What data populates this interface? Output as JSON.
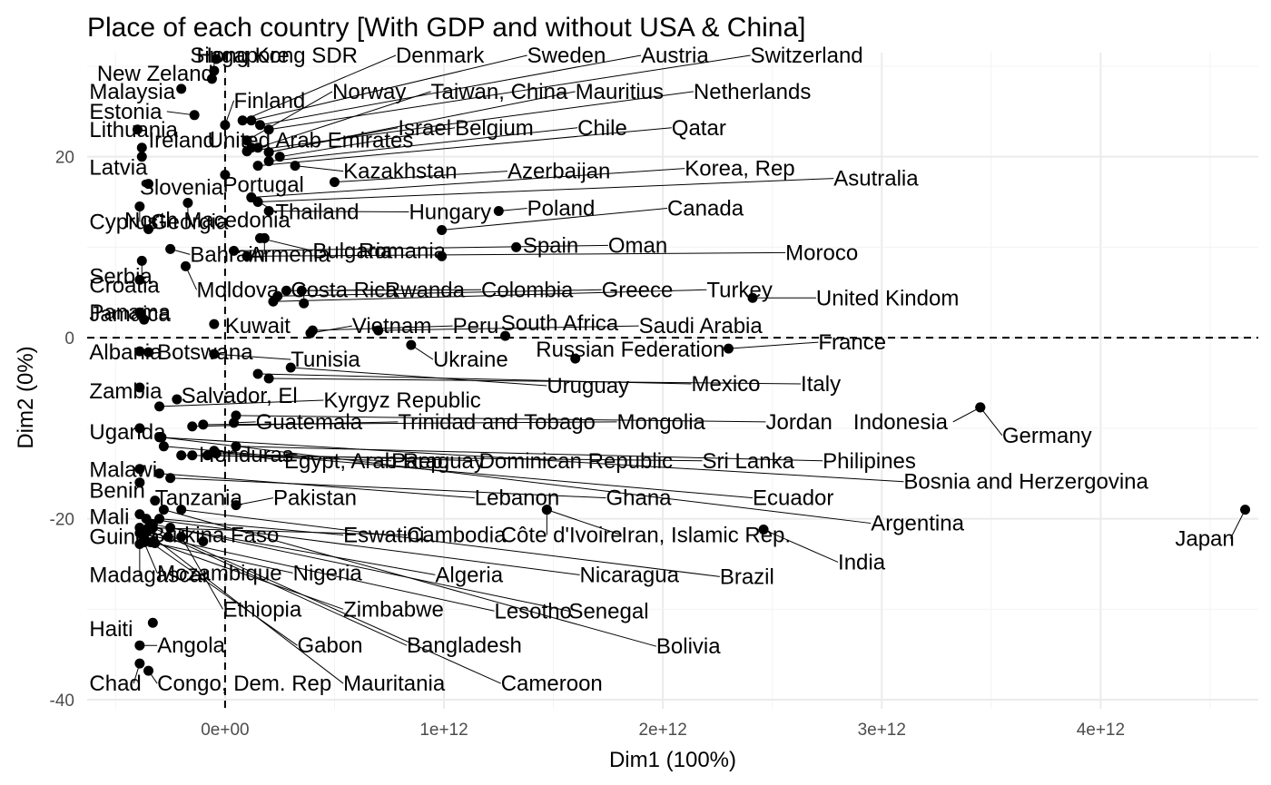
{
  "chart_data": {
    "type": "scatter",
    "title": "Place of each country [With GDP and without USA & China]",
    "xlabel": "Dim1 (100%)",
    "ylabel": "Dim2 (0%)",
    "xlim": [
      -630000000000.0,
      4720000000000.0
    ],
    "ylim": [
      -41,
      31.5
    ],
    "xticks": [
      0,
      1000000000000.0,
      2000000000000.0,
      3000000000000.0,
      4000000000000.0
    ],
    "xtick_labels": [
      "0e+00",
      "1e+12",
      "2e+12",
      "3e+12",
      "4e+12"
    ],
    "yticks": [
      20,
      0,
      -20,
      -40
    ],
    "ytick_labels": [
      "20",
      "0",
      "-20",
      "-40"
    ],
    "reference_lines": {
      "x": 0,
      "y": 0,
      "style": "dashed"
    },
    "grid": true,
    "points": [
      {
        "name": "Singapore",
        "x": -40000000000.0,
        "y": 30.8,
        "lx": -160000000000.0,
        "ly": 31.2
      },
      {
        "name": "Hong Kong SDR",
        "x": -50000000000.0,
        "y": 29.5,
        "lx": -130000000000.0,
        "ly": 31.2
      },
      {
        "name": "New Zeland",
        "x": -60000000000.0,
        "y": 28.6,
        "lx": -585000000000.0,
        "ly": 29.2
      },
      {
        "name": "Malaysia",
        "x": -200000000000.0,
        "y": 27.5,
        "lx": -620000000000.0,
        "ly": 27.2
      },
      {
        "name": "Estonia",
        "x": -140000000000.0,
        "y": 24.6,
        "lx": -620000000000.0,
        "ly": 25.0
      },
      {
        "name": "Denmark",
        "x": 80000000000.0,
        "y": 24.0,
        "lx": 780000000000.0,
        "ly": 31.2
      },
      {
        "name": "Sweden",
        "x": 120000000000.0,
        "y": 24.0,
        "lx": 1380000000000.0,
        "ly": 31.2
      },
      {
        "name": "Austria",
        "x": 160000000000.0,
        "y": 23.5,
        "lx": 1900000000000.0,
        "ly": 31.2
      },
      {
        "name": "Switzerland",
        "x": 200000000000.0,
        "y": 23.0,
        "lx": 2400000000000.0,
        "ly": 31.2
      },
      {
        "name": "Finland",
        "x": 0,
        "y": 23.5,
        "lx": 40000000000.0,
        "ly": 26.2
      },
      {
        "name": "Norway",
        "x": 100000000000.0,
        "y": 21.8,
        "lx": 490000000000.0,
        "ly": 27.2
      },
      {
        "name": "Taiwan, China",
        "x": 150000000000.0,
        "y": 21.0,
        "lx": 940000000000.0,
        "ly": 27.2
      },
      {
        "name": "Mauritius",
        "x": 200000000000.0,
        "y": 20.5,
        "lx": 1600000000000.0,
        "ly": 27.2
      },
      {
        "name": "Netherlands",
        "x": 100000000000.0,
        "y": 20.6,
        "lx": 2140000000000.0,
        "ly": 27.2
      },
      {
        "name": "Lithuania",
        "x": -400000000000.0,
        "y": 23.0,
        "lx": -620000000000.0,
        "ly": 23.0
      },
      {
        "name": "Ireland",
        "x": -380000000000.0,
        "y": 21.0,
        "lx": -350000000000.0,
        "ly": 21.8
      },
      {
        "name": "United Arab Emirates",
        "x": 120000000000.0,
        "y": 21.0,
        "lx": -80000000000.0,
        "ly": 21.8
      },
      {
        "name": "Israel",
        "x": 200000000000.0,
        "y": 20.5,
        "lx": 790000000000.0,
        "ly": 23.2
      },
      {
        "name": "Belgium",
        "x": 250000000000.0,
        "y": 20.0,
        "lx": 1050000000000.0,
        "ly": 23.2
      },
      {
        "name": "Chile",
        "x": 200000000000.0,
        "y": 19.5,
        "lx": 1610000000000.0,
        "ly": 23.2
      },
      {
        "name": "Qatar",
        "x": 150000000000.0,
        "y": 19.0,
        "lx": 2040000000000.0,
        "ly": 23.2
      },
      {
        "name": "Latvia",
        "x": -380000000000.0,
        "y": 20.0,
        "lx": -620000000000.0,
        "ly": 18.8
      },
      {
        "name": "Slovenia",
        "x": -350000000000.0,
        "y": 17.0,
        "lx": -390000000000.0,
        "ly": 16.6
      },
      {
        "name": "Portugal",
        "x": 0,
        "y": 18.0,
        "lx": -10000000000.0,
        "ly": 16.9
      },
      {
        "name": "Kazakhstan",
        "x": 320000000000.0,
        "y": 19.0,
        "lx": 540000000000.0,
        "ly": 18.4
      },
      {
        "name": "Azerbaijan",
        "x": 500000000000.0,
        "y": 17.2,
        "lx": 1290000000000.0,
        "ly": 18.4
      },
      {
        "name": "Korea, Rep",
        "x": 120000000000.0,
        "y": 15.5,
        "lx": 2100000000000.0,
        "ly": 18.7
      },
      {
        "name": "Asutralia",
        "x": 150000000000.0,
        "y": 15.0,
        "lx": 2780000000000.0,
        "ly": 17.6
      },
      {
        "name": "Cyprus",
        "x": -390000000000.0,
        "y": 14.5,
        "lx": -620000000000.0,
        "ly": 12.8
      },
      {
        "name": "North Macedonia",
        "x": -170000000000.0,
        "y": 14.9,
        "lx": -460000000000.0,
        "ly": 13.0
      },
      {
        "name": "Georgia",
        "x": -350000000000.0,
        "y": 12.0,
        "lx": -340000000000.0,
        "ly": 12.8
      },
      {
        "name": "Thailand",
        "x": 120000000000.0,
        "y": 15.5,
        "lx": 230000000000.0,
        "ly": 13.9
      },
      {
        "name": "Hungary",
        "x": 200000000000.0,
        "y": 14.0,
        "lx": 840000000000.0,
        "ly": 13.9
      },
      {
        "name": "Poland",
        "x": 1250000000000.0,
        "y": 14.0,
        "lx": 1380000000000.0,
        "ly": 14.3
      },
      {
        "name": "Canada",
        "x": 990000000000.0,
        "y": 11.9,
        "lx": 2020000000000.0,
        "ly": 14.3
      },
      {
        "name": "Bahrain",
        "x": -250000000000.0,
        "y": 9.8,
        "lx": -160000000000.0,
        "ly": 9.2
      },
      {
        "name": "Armenia",
        "x": 180000000000.0,
        "y": 11.0,
        "lx": 110000000000.0,
        "ly": 9.2
      },
      {
        "name": "Bulgaria",
        "x": 160000000000.0,
        "y": 11.0,
        "lx": 400000000000.0,
        "ly": 9.6
      },
      {
        "name": "Romania",
        "x": 990000000000.0,
        "y": 9.0,
        "lx": 610000000000.0,
        "ly": 9.6
      },
      {
        "name": "Spain",
        "x": 1330000000000.0,
        "y": 10.0,
        "lx": 1360000000000.0,
        "ly": 10.2
      },
      {
        "name": "Oman",
        "x": 40000000000.0,
        "y": 9.6,
        "lx": 1750000000000.0,
        "ly": 10.2
      },
      {
        "name": "Moroco",
        "x": 100000000000.0,
        "y": 9.0,
        "lx": 2560000000000.0,
        "ly": 9.4
      },
      {
        "name": "Serbia",
        "x": -380000000000.0,
        "y": 8.5,
        "lx": -620000000000.0,
        "ly": 6.8
      },
      {
        "name": "Croatia",
        "x": -390000000000.0,
        "y": 6.4,
        "lx": -620000000000.0,
        "ly": 5.8
      },
      {
        "name": "Moldova",
        "x": -180000000000.0,
        "y": 7.9,
        "lx": -130000000000.0,
        "ly": 5.3
      },
      {
        "name": "Costa Rica",
        "x": 360000000000.0,
        "y": 3.8,
        "lx": 300000000000.0,
        "ly": 5.3
      },
      {
        "name": "Rwanda",
        "x": 350000000000.0,
        "y": 5.2,
        "lx": 730000000000.0,
        "ly": 5.3
      },
      {
        "name": "Colombia",
        "x": 280000000000.0,
        "y": 5.2,
        "lx": 1170000000000.0,
        "ly": 5.3
      },
      {
        "name": "Greece",
        "x": 240000000000.0,
        "y": 4.6,
        "lx": 1720000000000.0,
        "ly": 5.3
      },
      {
        "name": "Turkey",
        "x": 220000000000.0,
        "y": 4.0,
        "lx": 2200000000000.0,
        "ly": 5.3
      },
      {
        "name": "United Kindom",
        "x": 2410000000000.0,
        "y": 4.4,
        "lx": 2700000000000.0,
        "ly": 4.4
      },
      {
        "name": "Jamaica",
        "x": -390000000000.0,
        "y": 2.8,
        "lx": -620000000000.0,
        "ly": 2.6
      },
      {
        "name": "Panama",
        "x": -370000000000.0,
        "y": 2.0,
        "lx": -620000000000.0,
        "ly": 2.8
      },
      {
        "name": "Kuwait",
        "x": -50000000000.0,
        "y": 1.5,
        "lx": 0,
        "ly": 1.3
      },
      {
        "name": "Vietnam",
        "x": 390000000000.0,
        "y": 0.5,
        "lx": 580000000000.0,
        "ly": 1.3
      },
      {
        "name": "Peru",
        "x": 400000000000.0,
        "y": 0.8,
        "lx": 1040000000000.0,
        "ly": 1.3
      },
      {
        "name": "South Africa",
        "x": 1280000000000.0,
        "y": 0.2,
        "lx": 1260000000000.0,
        "ly": 1.6
      },
      {
        "name": "Saudi Arabia",
        "x": 700000000000.0,
        "y": 0.8,
        "lx": 1890000000000.0,
        "ly": 1.3
      },
      {
        "name": "France",
        "x": 2300000000000.0,
        "y": -1.2,
        "lx": 2710000000000.0,
        "ly": -0.5
      },
      {
        "name": "Albania",
        "x": -390000000000.0,
        "y": -1.5,
        "lx": -620000000000.0,
        "ly": -1.6
      },
      {
        "name": "Botswana",
        "x": -350000000000.0,
        "y": -1.6,
        "lx": -310000000000.0,
        "ly": -1.6
      },
      {
        "name": "Tunisia",
        "x": -50000000000.0,
        "y": -1.8,
        "lx": 300000000000.0,
        "ly": -2.4
      },
      {
        "name": "Ukraine",
        "x": 850000000000.0,
        "y": -0.8,
        "lx": 950000000000.0,
        "ly": -2.4
      },
      {
        "name": "Russian Federation",
        "x": 1600000000000.0,
        "y": -2.3,
        "lx": 1420000000000.0,
        "ly": -1.3
      },
      {
        "name": "Uruguay",
        "x": 300000000000.0,
        "y": -3.3,
        "lx": 1470000000000.0,
        "ly": -5.3
      },
      {
        "name": "Mexico",
        "x": 150000000000.0,
        "y": -4.0,
        "lx": 2130000000000.0,
        "ly": -5.1
      },
      {
        "name": "Italy",
        "x": 200000000000.0,
        "y": -4.5,
        "lx": 2630000000000.0,
        "ly": -5.1
      },
      {
        "name": "Zambia",
        "x": -390000000000.0,
        "y": -5.5,
        "lx": -620000000000.0,
        "ly": -5.9
      },
      {
        "name": "Salvador, El",
        "x": -220000000000.0,
        "y": -6.8,
        "lx": -200000000000.0,
        "ly": -6.4
      },
      {
        "name": "Kyrgyz Republic",
        "x": -300000000000.0,
        "y": -7.6,
        "lx": 450000000000.0,
        "ly": -6.9
      },
      {
        "name": "Jordan",
        "x": 50000000000.0,
        "y": -8.6,
        "lx": 2470000000000.0,
        "ly": -9.3
      },
      {
        "name": "Indonesia",
        "x": 3450000000000.0,
        "y": -7.7,
        "lx": 2870000000000.0,
        "ly": -9.3
      },
      {
        "name": "Germany",
        "x": 3450000000000.0,
        "y": -7.7,
        "lx": 3550000000000.0,
        "ly": -10.8
      },
      {
        "name": "Uganda",
        "x": -390000000000.0,
        "y": -10.0,
        "lx": -620000000000.0,
        "ly": -10.4
      },
      {
        "name": "Guatemala",
        "x": 40000000000.0,
        "y": -9.4,
        "lx": 140000000000.0,
        "ly": -9.3
      },
      {
        "name": "Trinidad and Tobago",
        "x": -150000000000.0,
        "y": -9.8,
        "lx": 790000000000.0,
        "ly": -9.3
      },
      {
        "name": "Mongolia",
        "x": -100000000000.0,
        "y": -9.6,
        "lx": 1790000000000.0,
        "ly": -9.3
      },
      {
        "name": "Honduras",
        "x": -150000000000.0,
        "y": -13.0,
        "lx": -120000000000.0,
        "ly": -12.9
      },
      {
        "name": "Egypt, Arab Rep.",
        "x": -50000000000.0,
        "y": -12.5,
        "lx": 270000000000.0,
        "ly": -13.6
      },
      {
        "name": "Paraguay",
        "x": -80000000000.0,
        "y": -13.0,
        "lx": 760000000000.0,
        "ly": -13.6
      },
      {
        "name": "Dominican Republic",
        "x": -40000000000.0,
        "y": -12.8,
        "lx": 1160000000000.0,
        "ly": -13.6
      },
      {
        "name": "Sri Lanka",
        "x": -200000000000.0,
        "y": -13.0,
        "lx": 2180000000000.0,
        "ly": -13.6
      },
      {
        "name": "Philipines",
        "x": 50000000000.0,
        "y": -12.0,
        "lx": 2730000000000.0,
        "ly": -13.6
      },
      {
        "name": "Bosnia and Herzergovina",
        "x": -300000000000.0,
        "y": -11.0,
        "lx": 3100000000000.0,
        "ly": -15.9
      },
      {
        "name": "Malawi",
        "x": -390000000000.0,
        "y": -14.5,
        "lx": -620000000000.0,
        "ly": -14.6
      },
      {
        "name": "Benin",
        "x": -390000000000.0,
        "y": -16.0,
        "lx": -620000000000.0,
        "ly": -16.9
      },
      {
        "name": "Tanzania",
        "x": -320000000000.0,
        "y": -18.0,
        "lx": -320000000000.0,
        "ly": -17.7
      },
      {
        "name": "Pakistan",
        "x": 50000000000.0,
        "y": -18.5,
        "lx": 220000000000.0,
        "ly": -17.7
      },
      {
        "name": "Lebanon",
        "x": -300000000000.0,
        "y": -15.0,
        "lx": 1140000000000.0,
        "ly": -17.7
      },
      {
        "name": "Ghana",
        "x": -250000000000.0,
        "y": -15.5,
        "lx": 1740000000000.0,
        "ly": -17.7
      },
      {
        "name": "Ecuador",
        "x": -280000000000.0,
        "y": -12.0,
        "lx": 2410000000000.0,
        "ly": -17.7
      },
      {
        "name": "Argentina",
        "x": -290000000000.0,
        "y": -11.0,
        "lx": 2950000000000.0,
        "ly": -20.5
      },
      {
        "name": "Mali",
        "x": -390000000000.0,
        "y": -19.5,
        "lx": -620000000000.0,
        "ly": -19.8
      },
      {
        "name": "Japan",
        "x": 4660000000000.0,
        "y": -19.0,
        "lx": 4340000000000.0,
        "ly": -22.2
      },
      {
        "name": "Guinea",
        "x": -390000000000.0,
        "y": -21.0,
        "lx": -620000000000.0,
        "ly": -22.0
      },
      {
        "name": "Burkina Faso",
        "x": -100000000000.0,
        "y": -22.5,
        "lx": -340000000000.0,
        "ly": -21.8
      },
      {
        "name": "Eswatini",
        "x": -300000000000.0,
        "y": -20.0,
        "lx": 540000000000.0,
        "ly": -21.8
      },
      {
        "name": "Cambodia",
        "x": -350000000000.0,
        "y": -21.0,
        "lx": 830000000000.0,
        "ly": -21.8
      },
      {
        "name": "Côte d'Ivoire",
        "x": 1470000000000.0,
        "y": -19.0,
        "lx": 1260000000000.0,
        "ly": -21.8
      },
      {
        "name": "Iran, Islamic Rep.",
        "x": 1470000000000.0,
        "y": -19.0,
        "lx": 1810000000000.0,
        "ly": -21.8
      },
      {
        "name": "India",
        "x": 2460000000000.0,
        "y": -21.2,
        "lx": 2800000000000.0,
        "ly": -24.8
      },
      {
        "name": "Madagascar",
        "x": -390000000000.0,
        "y": -22.8,
        "lx": -620000000000.0,
        "ly": -26.2
      },
      {
        "name": "Mozambique",
        "x": -370000000000.0,
        "y": -22.6,
        "lx": -310000000000.0,
        "ly": -26.0
      },
      {
        "name": "Nigeria",
        "x": -320000000000.0,
        "y": -22.7,
        "lx": 310000000000.0,
        "ly": -26.0
      },
      {
        "name": "Algeria",
        "x": -250000000000.0,
        "y": -21.0,
        "lx": 960000000000.0,
        "ly": -26.2
      },
      {
        "name": "Nicaragua",
        "x": -360000000000.0,
        "y": -20.0,
        "lx": 1620000000000.0,
        "ly": -26.2
      },
      {
        "name": "Brazil",
        "x": -200000000000.0,
        "y": -19.0,
        "lx": 2260000000000.0,
        "ly": -26.4
      },
      {
        "name": "Ethiopia",
        "x": -200000000000.0,
        "y": -22.0,
        "lx": -10000000000.0,
        "ly": -30.0
      },
      {
        "name": "Zimbabwe",
        "x": -370000000000.0,
        "y": -22.2,
        "lx": 540000000000.0,
        "ly": -30.0
      },
      {
        "name": "Lesotho",
        "x": -390000000000.0,
        "y": -21.6,
        "lx": 1230000000000.0,
        "ly": -30.2
      },
      {
        "name": "Senegal",
        "x": -330000000000.0,
        "y": -20.6,
        "lx": 1570000000000.0,
        "ly": -30.2
      },
      {
        "name": "Bolivia",
        "x": -280000000000.0,
        "y": -19.0,
        "lx": 1970000000000.0,
        "ly": -34.1
      },
      {
        "name": "Haiti",
        "x": -330000000000.0,
        "y": -31.5,
        "lx": -620000000000.0,
        "ly": -32.2
      },
      {
        "name": "Angola",
        "x": -390000000000.0,
        "y": -34.0,
        "lx": -310000000000.0,
        "ly": -34.0
      },
      {
        "name": "Gabon",
        "x": -340000000000.0,
        "y": -22.6,
        "lx": 330000000000.0,
        "ly": -34.0
      },
      {
        "name": "Bangladesh",
        "x": -260000000000.0,
        "y": -22.0,
        "lx": 830000000000.0,
        "ly": -34.0
      },
      {
        "name": "Chad",
        "x": -390000000000.0,
        "y": -36.0,
        "lx": -620000000000.0,
        "ly": -38.2
      },
      {
        "name": "Congo, Dem. Rep",
        "x": -350000000000.0,
        "y": -36.8,
        "lx": -310000000000.0,
        "ly": -38.2
      },
      {
        "name": "Mauritania",
        "x": -360000000000.0,
        "y": -21.5,
        "lx": 540000000000.0,
        "ly": -38.2
      },
      {
        "name": "Cameroon",
        "x": -330000000000.0,
        "y": -21.0,
        "lx": 1260000000000.0,
        "ly": -38.2
      }
    ]
  }
}
